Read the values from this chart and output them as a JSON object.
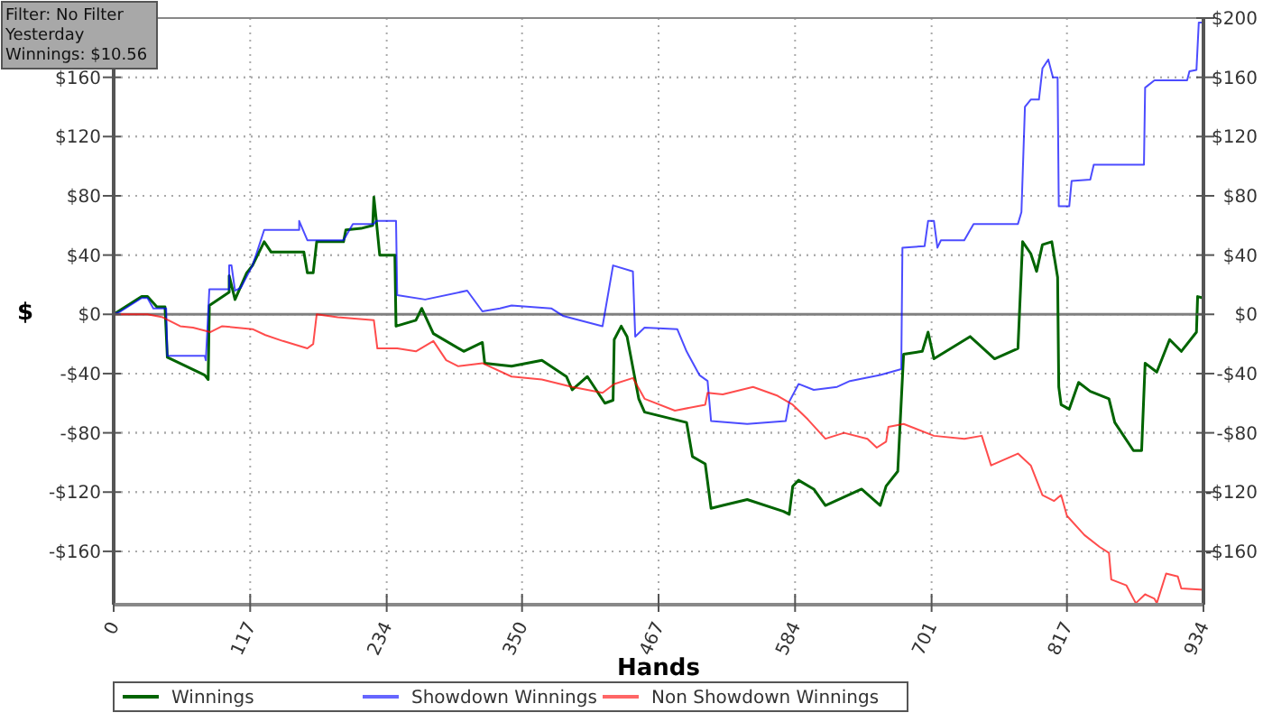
{
  "chart_data": {
    "type": "line",
    "xlabel": "Hands",
    "ylabel": "$",
    "annotations": [
      "Filter: No Filter",
      "Yesterday",
      "Winnings: $10.56"
    ],
    "xlim": [
      0,
      934
    ],
    "xticks": [
      0,
      117,
      234,
      350,
      467,
      584,
      701,
      817,
      934
    ],
    "ylim": [
      -196,
      200
    ],
    "yticks": [
      {
        "value": -160,
        "label": "-$160"
      },
      {
        "value": -120,
        "label": "-$120"
      },
      {
        "value": -80,
        "label": "-$80"
      },
      {
        "value": -40,
        "label": "-$40"
      },
      {
        "value": 0,
        "label": "$0"
      },
      {
        "value": 40,
        "label": "$40"
      },
      {
        "value": 80,
        "label": "$80"
      },
      {
        "value": 120,
        "label": "$120"
      },
      {
        "value": 160,
        "label": "$160"
      }
    ],
    "y2lim": [
      -196,
      200
    ],
    "y2ticks": [
      {
        "value": -160,
        "label": "-$160"
      },
      {
        "value": -120,
        "label": "-$120"
      },
      {
        "value": -80,
        "label": "-$80"
      },
      {
        "value": -40,
        "label": "-$40"
      },
      {
        "value": 0,
        "label": "$0"
      },
      {
        "value": 40,
        "label": "$40"
      },
      {
        "value": 80,
        "label": "$80"
      },
      {
        "value": 120,
        "label": "$120"
      },
      {
        "value": 160,
        "label": "$160"
      },
      {
        "value": 200,
        "label": "$200"
      }
    ],
    "grid": true,
    "legend": "bottom",
    "marker": "none",
    "line_style": "solid",
    "ref_lines": [
      {
        "axis": "y",
        "value": 0,
        "color": "#808080"
      }
    ],
    "series": [
      {
        "name": "Winnings",
        "color": "#006400",
        "x": [
          0,
          24,
          29,
          37,
          44,
          46,
          78,
          81,
          82,
          99,
          99,
          104,
          114,
          119,
          129,
          135,
          163,
          166,
          171,
          174,
          197,
          199,
          212,
          222,
          223,
          225,
          228,
          241,
          242,
          259,
          264,
          274,
          300,
          316,
          318,
          341,
          367,
          388,
          393,
          406,
          421,
          428,
          429,
          435,
          440,
          450,
          455,
          491,
          496,
          507,
          512,
          522,
          543,
          574,
          579,
          582,
          587,
          600,
          610,
          641,
          657,
          662,
          672,
          677,
          693,
          698,
          703,
          734,
          755,
          775,
          779,
          786,
          791,
          796,
          804,
          809,
          810,
          812,
          819,
          827,
          837,
          853,
          858,
          874,
          881,
          884,
          894,
          905,
          915,
          928,
          929,
          934
        ],
        "values": [
          0,
          12,
          12,
          5,
          5,
          -29,
          -41,
          -44,
          6,
          15,
          26,
          10,
          28,
          33,
          49,
          42,
          42,
          28,
          28,
          49,
          49,
          57,
          58,
          60,
          79,
          64,
          40,
          40,
          -8,
          -4,
          4,
          -13,
          -25,
          -19,
          -33,
          -35,
          -31,
          -42,
          -51,
          -42,
          -60,
          -58,
          -17,
          -8,
          -15,
          -57,
          -66,
          -73,
          -96,
          -101,
          -131,
          -129,
          -125,
          -133,
          -135,
          -116,
          -112,
          -118,
          -129,
          -118,
          -129,
          -116,
          -106,
          -27,
          -25,
          -12,
          -30,
          -15,
          -30,
          -23,
          49,
          41,
          29,
          47,
          49,
          25,
          -49,
          -61,
          -64,
          -46,
          -52,
          -57,
          -73,
          -92,
          -92,
          -33,
          -39,
          -17,
          -25,
          -12,
          12,
          11
        ]
      },
      {
        "name": "Showdown Winnings",
        "color": "#0000ff",
        "x": [
          0,
          6,
          24,
          29,
          34,
          45,
          46,
          78,
          79,
          82,
          99,
          99,
          101,
          104,
          109,
          119,
          122,
          129,
          159,
          159,
          166,
          197,
          205,
          223,
          225,
          242,
          243,
          267,
          303,
          316,
          331,
          341,
          375,
          385,
          419,
          428,
          445,
          447,
          455,
          483,
          491,
          502,
          509,
          512,
          543,
          576,
          579,
          587,
          600,
          620,
          631,
          657,
          675,
          676,
          695,
          698,
          703,
          706,
          709,
          729,
          737,
          775,
          778,
          781,
          786,
          793,
          796,
          801,
          805,
          809,
          810,
          819,
          821,
          837,
          840,
          883,
          884,
          892,
          920,
          922,
          928,
          930,
          934
        ],
        "values": [
          0,
          2,
          11,
          11,
          4,
          4,
          -28,
          -28,
          -31,
          17,
          17,
          33,
          33,
          16,
          18,
          33,
          40,
          57,
          57,
          63,
          50,
          50,
          61,
          61,
          63,
          63,
          13,
          10,
          16,
          2,
          4,
          6,
          4,
          -1,
          -8,
          33,
          29,
          -15,
          -9,
          -10,
          -25,
          -41,
          -45,
          -72,
          -74,
          -72,
          -59,
          -47,
          -51,
          -49,
          -45,
          -41,
          -37,
          45,
          46,
          63,
          63,
          45,
          50,
          50,
          61,
          61,
          69,
          140,
          145,
          145,
          166,
          172,
          160,
          160,
          73,
          73,
          90,
          91,
          101,
          101,
          153,
          158,
          158,
          164,
          165,
          197,
          197
        ]
      },
      {
        "name": "Non Showdown Winnings",
        "color": "#ff0000",
        "x": [
          0,
          29,
          42,
          57,
          68,
          83,
          93,
          119,
          130,
          145,
          166,
          171,
          174,
          192,
          223,
          226,
          243,
          259,
          274,
          285,
          295,
          316,
          341,
          367,
          393,
          419,
          429,
          445,
          455,
          481,
          507,
          509,
          522,
          548,
          569,
          582,
          595,
          610,
          626,
          646,
          654,
          662,
          664,
          677,
          703,
          729,
          744,
          752,
          775,
          786,
          796,
          806,
          812,
          817,
          832,
          845,
          853,
          855,
          868,
          876,
          884,
          892,
          894,
          902,
          912,
          915,
          934
        ],
        "values": [
          0,
          0,
          -2,
          -8,
          -9,
          -12,
          -8,
          -10,
          -14,
          -18,
          -23,
          -20,
          0,
          -2,
          -4,
          -23,
          -23,
          -25,
          -18,
          -31,
          -35,
          -33,
          -42,
          -44,
          -49,
          -53,
          -47,
          -43,
          -57,
          -65,
          -61,
          -53,
          -54,
          -49,
          -55,
          -61,
          -71,
          -84,
          -80,
          -84,
          -90,
          -86,
          -76,
          -74,
          -82,
          -84,
          -82,
          -102,
          -94,
          -102,
          -122,
          -126,
          -122,
          -136,
          -149,
          -157,
          -161,
          -179,
          -183,
          -195,
          -189,
          -192,
          -195,
          -175,
          -177,
          -185,
          -186
        ]
      }
    ]
  }
}
